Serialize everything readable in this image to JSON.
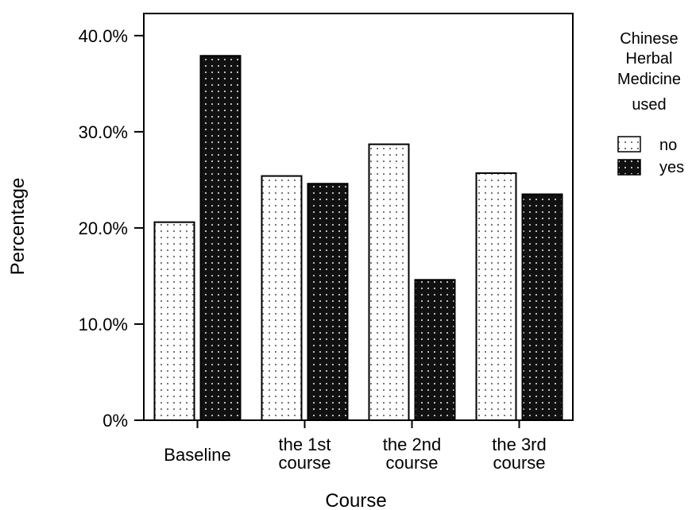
{
  "chart_data": {
    "type": "bar",
    "categories": [
      [
        "Baseline"
      ],
      [
        "the 1st",
        "course"
      ],
      [
        "the 2nd",
        "course"
      ],
      [
        "the 3rd",
        "course"
      ]
    ],
    "series": [
      {
        "name": "no",
        "values": [
          20.6,
          25.4,
          28.7,
          25.7
        ],
        "fill": "#ffffff",
        "dots": "#777777"
      },
      {
        "name": "yes",
        "values": [
          37.9,
          24.6,
          14.6,
          23.5
        ],
        "fill": "#111111",
        "dots": "#bbbbbb"
      }
    ],
    "xlabel": "Course",
    "ylabel": "Percentage",
    "ylim": [
      0,
      42.3
    ],
    "yticks": [
      0,
      10,
      20,
      30,
      40
    ],
    "ytick_labels": [
      "0%",
      "10.0%",
      "20.0%",
      "30.0%",
      "40.0%"
    ],
    "grid": false,
    "legend": {
      "title_lines": [
        "Chinese",
        "Herbal",
        "Medicine",
        "used"
      ],
      "placement": "right"
    }
  }
}
